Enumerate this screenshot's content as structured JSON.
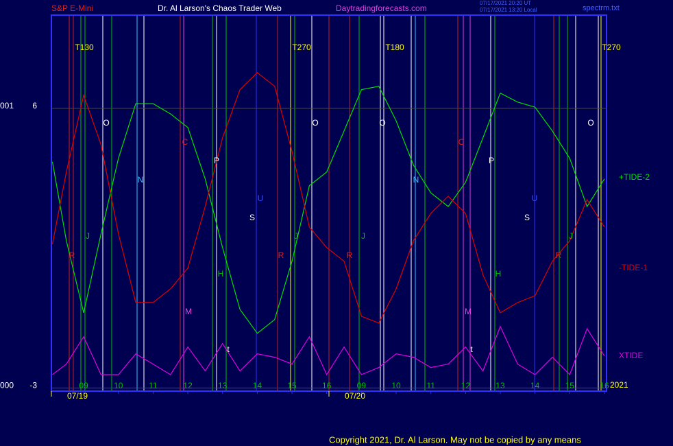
{
  "header": {
    "symbol": "S&P E-Mini",
    "title": "Dr. Al Larson's Chaos Trader Web",
    "site": "Daytradingforecasts.com",
    "time_ut": "07/17/2021 20:20 UT",
    "time_local": "07/17/2021 13:20 Local",
    "file": "spectrm.txt"
  },
  "chart_data": {
    "type": "line",
    "x": [
      8.1,
      8.5,
      9,
      9.5,
      10,
      10.5,
      11,
      11.5,
      12,
      12.5,
      13,
      13.5,
      14,
      14.5,
      15,
      15.5,
      16,
      16.5,
      17,
      17.5,
      18,
      18.5,
      19,
      19.5,
      20,
      20.5,
      21,
      21.5,
      22,
      22.5,
      23,
      23.5,
      24
    ],
    "series": [
      {
        "name": "+TIDE-2",
        "color": "#00e000",
        "values": [
          4.28,
          1.74,
          -0.58,
          1.96,
          4.39,
          6.15,
          6.15,
          5.82,
          5.38,
          3.73,
          1.52,
          -0.47,
          -1.24,
          -0.8,
          1.08,
          3.51,
          3.95,
          5.27,
          6.6,
          6.71,
          5.6,
          4.17,
          3.28,
          2.84,
          3.62,
          5.05,
          6.49,
          6.2,
          6.04,
          5.27,
          4.39,
          2.84,
          3.73
        ]
      },
      {
        "name": "-TIDE-1",
        "color": "#e00000",
        "values": [
          1.63,
          3.95,
          6.42,
          4.83,
          1.96,
          -0.25,
          -0.25,
          0.19,
          0.86,
          2.84,
          5.05,
          6.6,
          7.15,
          6.71,
          4.61,
          2.18,
          1.52,
          1.08,
          -0.69,
          -0.91,
          0.19,
          1.74,
          2.62,
          3.17,
          2.62,
          0.64,
          -0.58,
          -0.25,
          -0.03,
          1.08,
          1.74,
          3.06,
          2.18
        ]
      },
      {
        "name": "XTIDE",
        "color": "#e000e0",
        "values": [
          -2.57,
          -2.23,
          -1.35,
          -2.57,
          -2.57,
          -1.9,
          -2.23,
          -2.57,
          -1.68,
          -2.45,
          -1.57,
          -2.45,
          -1.9,
          -2.01,
          -2.23,
          -1.35,
          -2.57,
          -1.68,
          -2.57,
          -2.34,
          -1.9,
          -2.01,
          -2.34,
          -2.23,
          -1.68,
          -2.45,
          -1.02,
          -2.23,
          -2.57,
          -2.01,
          -2.57,
          -1.09,
          -1.97
        ]
      }
    ],
    "xlim": [
      8.07,
      24.06
    ],
    "xticks": [
      {
        "value": 9,
        "label": "09"
      },
      10,
      11,
      12,
      13,
      14,
      15,
      16,
      {
        "value": 17,
        "label": "09"
      },
      {
        "value": 18,
        "label": "10"
      },
      {
        "value": 19,
        "label": "11"
      },
      {
        "value": 20,
        "label": "12"
      },
      {
        "value": 21,
        "label": "13"
      },
      {
        "value": 22,
        "label": "14"
      },
      {
        "value": 23,
        "label": "15"
      },
      {
        "value": 24,
        "label": "16"
      }
    ],
    "ylim": [
      -3.1,
      9
    ],
    "yticks": [
      {
        "value": 6,
        "label": "6"
      },
      {
        "value": -3,
        "label": "-3"
      }
    ],
    "y_side_labels": [
      "001",
      "000"
    ],
    "dates": [
      "07/19",
      "07/20"
    ],
    "year": "2021",
    "annotations": [
      "T130",
      "T270",
      "T180",
      "T270",
      "O",
      "O",
      "O",
      "O",
      "N",
      "N",
      "P",
      "P",
      "U",
      "U",
      "S",
      "S",
      "J",
      "J",
      "J",
      "J",
      "R",
      "R",
      "R",
      "R",
      "H",
      "H",
      "M",
      "M",
      "t",
      "t",
      "C",
      "C"
    ]
  },
  "footer": {
    "copyright": "Copyright 2021, Dr. Al Larson. May not be copied by any means"
  }
}
